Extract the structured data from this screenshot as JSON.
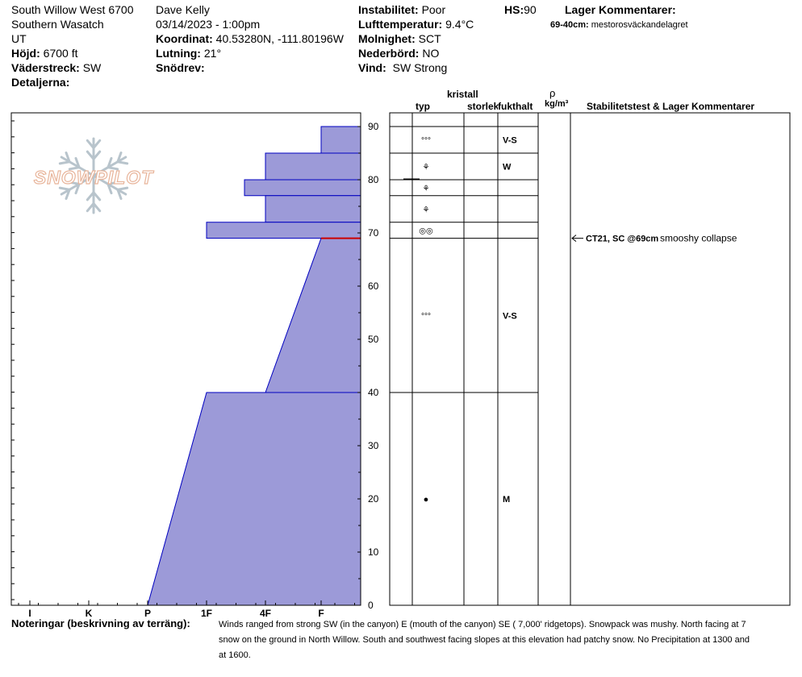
{
  "header": {
    "location": "South Willow West 6700",
    "range": "Southern Wasatch",
    "state": "UT",
    "elevation_label": "Höjd:",
    "elevation": "6700 ft",
    "aspect_label": "Väderstreck:",
    "aspect": "SW",
    "details_label": "Detaljerna:",
    "observer": "Dave Kelly",
    "datetime": "03/14/2023 - 1:00pm",
    "coord_label": "Koordinat:",
    "coord": "40.53280N, -111.80196W",
    "slope_label": "Lutning:",
    "slope": "21°",
    "drift_label": "Snödrev:",
    "instability_label": "Instabilitet:",
    "instability": "Poor",
    "airtemp_label": "Lufttemperatur:",
    "airtemp": "9.4°C",
    "sky_label": "Molnighet:",
    "sky": "SCT",
    "precip_label": "Nederbörd:",
    "precip": "NO",
    "wind_label": "Vind:",
    "wind": "SW Strong",
    "hs_label": "HS:",
    "hs": "90",
    "layer_comments_title": "Lager Kommentarer:",
    "layer_comment_range": "69-40cm:",
    "layer_comment_text": "mestorosväckandelagret"
  },
  "logo": {
    "text": "SNOWPILOT"
  },
  "columns": {
    "crystal": "kristall",
    "type": "typ",
    "size": "storlek",
    "moisture": "fukthalt",
    "rho": "ρ",
    "density": "kg/m³",
    "stability": "Stabilitetstest & Lager Kommentarer"
  },
  "hardness_labels": [
    "I",
    "K",
    "P",
    "1F",
    "4F",
    "F"
  ],
  "depth_ticks": [
    "0",
    "10",
    "20",
    "30",
    "40",
    "50",
    "60",
    "70",
    "80",
    "90"
  ],
  "chart_data": {
    "type": "area",
    "xlabel": "",
    "ylabel": "",
    "ylim": [
      0,
      90
    ],
    "layers": [
      {
        "top": 90,
        "bottom": 85,
        "hardness_top": "F",
        "hardness_bottom": "F"
      },
      {
        "top": 85,
        "bottom": 80,
        "hardness_top": "4F",
        "hardness_bottom": "4F"
      },
      {
        "top": 80,
        "bottom": 77,
        "hardness_top": "4F-1F",
        "hardness_bottom": "4F-1F"
      },
      {
        "top": 77,
        "bottom": 72,
        "hardness_top": "4F",
        "hardness_bottom": "4F"
      },
      {
        "top": 72,
        "bottom": 69,
        "hardness_top": "1F",
        "hardness_bottom": "1F"
      },
      {
        "top": 69,
        "bottom": 40,
        "hardness_top": "F",
        "hardness_bottom": "4F"
      },
      {
        "top": 40,
        "bottom": 0,
        "hardness_top": "1F",
        "hardness_bottom": "P"
      }
    ],
    "weak_layer_depth": 69,
    "layer_boundaries": [
      90,
      85,
      80,
      77,
      72,
      69,
      40
    ]
  },
  "grain_rows": [
    {
      "depth": 87.5,
      "symbol": "°°°",
      "moisture": "V-S"
    },
    {
      "depth": 82.5,
      "symbol": "⚘",
      "moisture": "W"
    },
    {
      "depth": 78.5,
      "symbol": "⚘",
      "moisture": ""
    },
    {
      "depth": 74.5,
      "symbol": "⚘",
      "moisture": ""
    },
    {
      "depth": 70.5,
      "symbol": "◎◎",
      "moisture": ""
    },
    {
      "depth": 54.5,
      "symbol": "°°°",
      "moisture": "V-S"
    },
    {
      "depth": 20,
      "symbol": "●",
      "moisture": "M"
    }
  ],
  "stability_test": {
    "depth": 69,
    "code": "CT21, SC @69cm",
    "comment": "smooshy collapse"
  },
  "notes": {
    "label": "Noteringar (beskrivning av terräng):",
    "lines": [
      "Winds ranged from strong SW (in the canyon) E (mouth of the canyon) SE ( 7,000' ridgetops). Snowpack was mushy. North facing at 7",
      "snow on the ground in North Willow. South and southwest facing slopes at this elevation had patchy snow. No Precipitation at 1300 and",
      "at 1600."
    ]
  },
  "colors": {
    "hardness_fill": "#9c9ad8",
    "hardness_edge": "#0000c0",
    "weak_layer": "#cc0000",
    "logo_orange": "#e8b49a",
    "logo_snowflake": "#b8c4cc"
  }
}
